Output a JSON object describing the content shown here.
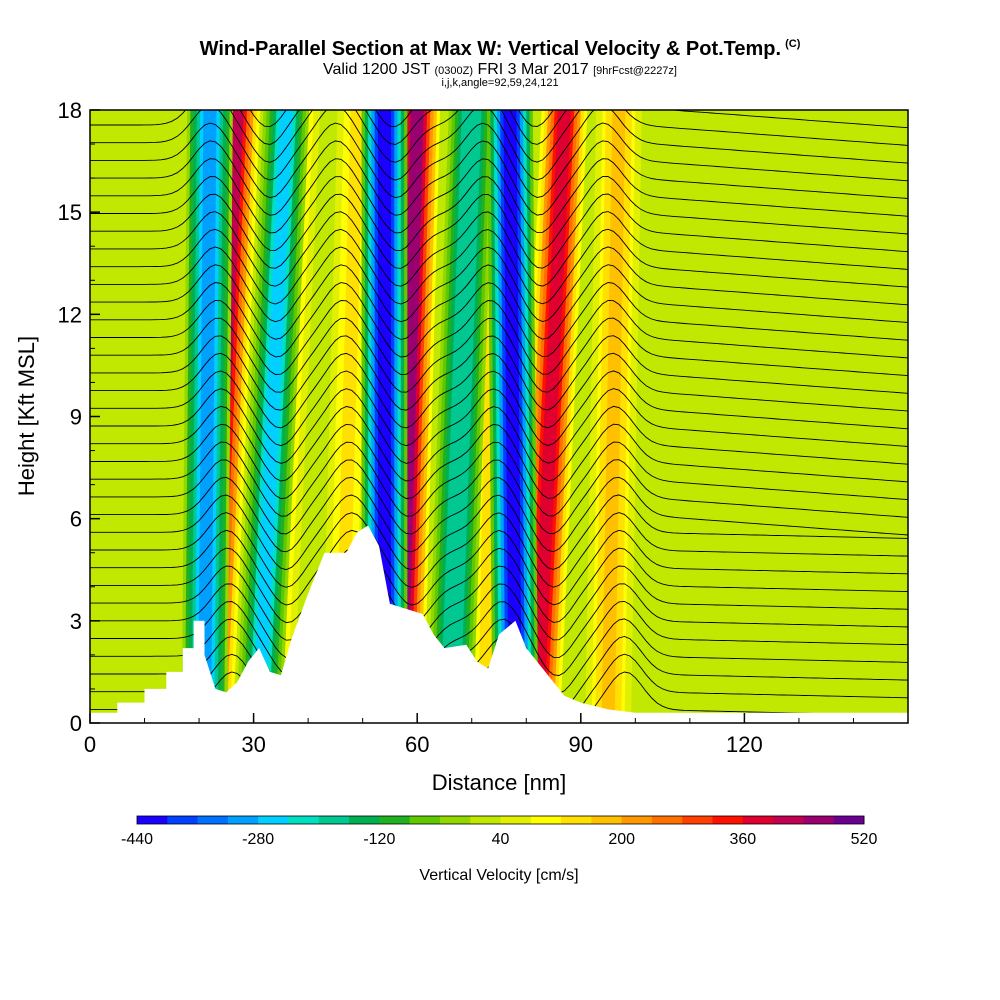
{
  "title": "Wind-Parallel Section at Max W: Vertical Velocity & Pot.Temp.",
  "title_tag": "(C)",
  "subtitle_main": "Valid 1200 JST",
  "subtitle_utc": "(0300Z)",
  "subtitle_date": "FRI 3 Mar 2017",
  "subtitle_fcst": "[9hrFcst@2227z]",
  "subsubtitle": "i,j,k,angle=92,59,24,121",
  "chart_data": {
    "type": "heatmap",
    "xlabel": "Distance [nm]",
    "ylabel": "Height [Kft MSL]",
    "xlim": [
      0,
      150
    ],
    "ylim": [
      0,
      18
    ],
    "x_ticks": [
      "0",
      "30",
      "60",
      "90",
      "120"
    ],
    "y_ticks": [
      "0",
      "3",
      "6",
      "9",
      "12",
      "15",
      "18"
    ],
    "colorbar": {
      "label": "Vertical Velocity [cm/s]",
      "min": -440,
      "max": 520,
      "tick_labels": [
        "-440",
        "-280",
        "-120",
        "40",
        "200",
        "360",
        "520"
      ],
      "colors": [
        "#1a00ff",
        "#0040ff",
        "#0070ff",
        "#00a0ff",
        "#00d0ff",
        "#00e0c0",
        "#00c890",
        "#00b050",
        "#20b020",
        "#60c800",
        "#90d800",
        "#c0e800",
        "#e0f000",
        "#ffff00",
        "#ffe000",
        "#ffc000",
        "#ff9800",
        "#ff7000",
        "#ff4000",
        "#ff1000",
        "#e00030",
        "#c00050",
        "#9a0070",
        "#6a0090"
      ]
    },
    "terrain_profile": [
      [
        0,
        0.3
      ],
      [
        5,
        0.3
      ],
      [
        5,
        0.6
      ],
      [
        10,
        0.6
      ],
      [
        10,
        1.0
      ],
      [
        14,
        1.0
      ],
      [
        14,
        1.5
      ],
      [
        17,
        1.5
      ],
      [
        17,
        2.2
      ],
      [
        19,
        2.2
      ],
      [
        19,
        3.0
      ],
      [
        21,
        3.0
      ],
      [
        21,
        2.0
      ],
      [
        23,
        1.0
      ],
      [
        25,
        0.9
      ],
      [
        27,
        1.2
      ],
      [
        29,
        1.8
      ],
      [
        31,
        2.2
      ],
      [
        33,
        1.5
      ],
      [
        35,
        1.4
      ],
      [
        37,
        2.5
      ],
      [
        40,
        3.8
      ],
      [
        43,
        5.0
      ],
      [
        47,
        5.0
      ],
      [
        49,
        5.6
      ],
      [
        51,
        5.8
      ],
      [
        53,
        5.2
      ],
      [
        55,
        3.5
      ],
      [
        57,
        3.4
      ],
      [
        61,
        3.2
      ],
      [
        63,
        2.6
      ],
      [
        65,
        2.2
      ],
      [
        69,
        2.3
      ],
      [
        71,
        1.8
      ],
      [
        73,
        1.6
      ],
      [
        75,
        2.6
      ],
      [
        78,
        3.0
      ],
      [
        80,
        2.2
      ],
      [
        83,
        1.6
      ],
      [
        85,
        1.2
      ],
      [
        87,
        0.8
      ],
      [
        90,
        0.6
      ],
      [
        95,
        0.4
      ],
      [
        100,
        0.3
      ],
      [
        150,
        0.3
      ]
    ],
    "updraft_bands": [
      {
        "x_bottom": 22,
        "x_top": 27,
        "peak": 400
      },
      {
        "x_bottom": 33,
        "x_top": 38,
        "peak": 150
      },
      {
        "x_bottom": 46,
        "x_top": 49,
        "peak": 120
      },
      {
        "x_bottom": 57,
        "x_top": 60,
        "peak": 440
      },
      {
        "x_bottom": 73,
        "x_top": 75,
        "peak": 150
      },
      {
        "x_bottom": 82,
        "x_top": 87,
        "peak": 380
      },
      {
        "x_bottom": 95,
        "x_top": 97,
        "peak": 180
      }
    ],
    "downdraft_bands": [
      {
        "x_bottom": 21,
        "x_top": 22,
        "peak": -300
      },
      {
        "x_bottom": 31,
        "x_top": 36,
        "peak": -250
      },
      {
        "x_bottom": 54,
        "x_top": 54,
        "peak": -440
      },
      {
        "x_bottom": 66,
        "x_top": 70,
        "peak": -200
      },
      {
        "x_bottom": 78,
        "x_top": 77,
        "peak": -440
      }
    ]
  }
}
